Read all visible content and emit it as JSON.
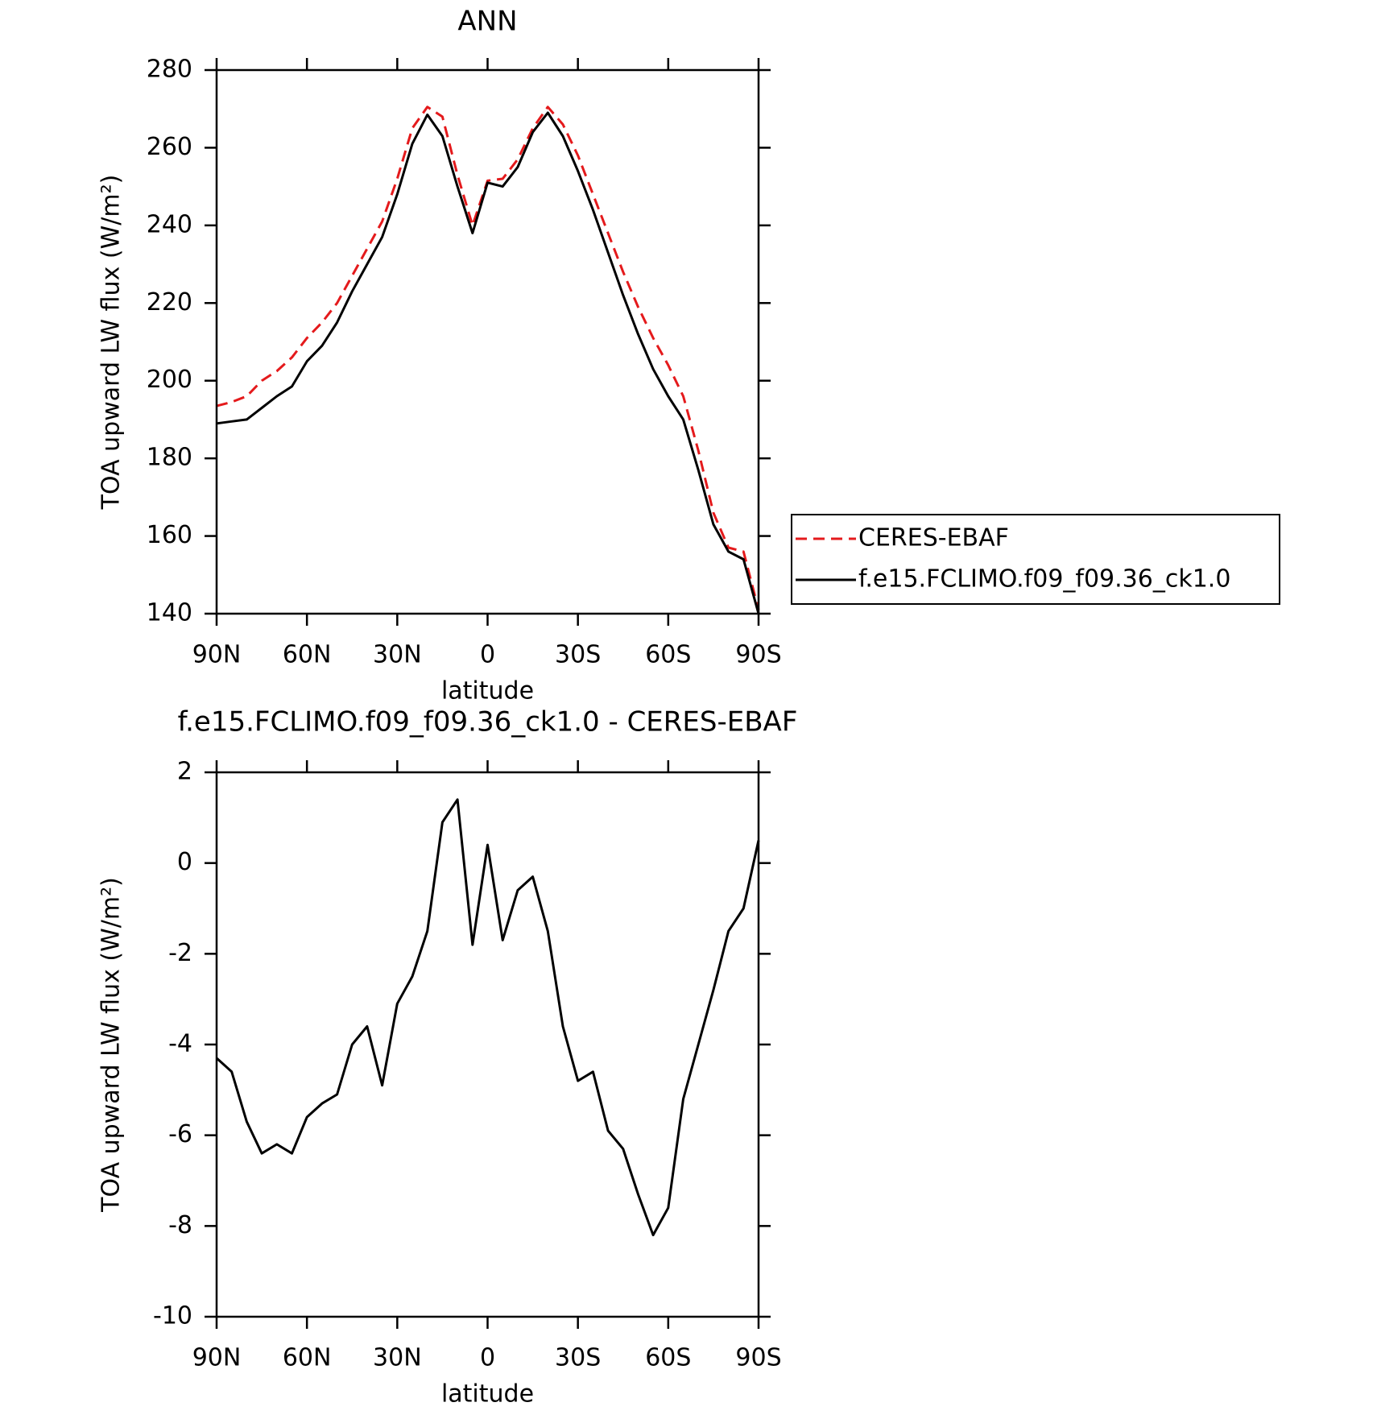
{
  "chart_data": [
    {
      "type": "line",
      "title": "ANN",
      "xlabel": "latitude",
      "ylabel": "TOA upward LW flux (W/m²)",
      "x": [
        90,
        85,
        80,
        75,
        70,
        65,
        60,
        55,
        50,
        45,
        40,
        35,
        30,
        25,
        20,
        15,
        10,
        5,
        0,
        -5,
        -10,
        -15,
        -20,
        -25,
        -30,
        -35,
        -40,
        -45,
        -50,
        -55,
        -60,
        -65,
        -70,
        -75,
        -80,
        -85,
        -90
      ],
      "xlim": [
        90,
        -90
      ],
      "xticks": [
        {
          "value": 90,
          "label": "90N"
        },
        {
          "value": 60,
          "label": "60N"
        },
        {
          "value": 30,
          "label": "30N"
        },
        0,
        {
          "value": -30,
          "label": "30S"
        },
        {
          "value": -60,
          "label": "60S"
        },
        {
          "value": -90,
          "label": "90S"
        }
      ],
      "ylim": [
        140,
        280
      ],
      "yticks": [
        140,
        160,
        180,
        200,
        220,
        240,
        260,
        280
      ],
      "legend": "right",
      "series": [
        {
          "name": "CERES-EBAF",
          "color": "#e41a1c",
          "dash": true,
          "values": [
            193.5,
            194.5,
            196,
            200,
            202.5,
            206,
            211,
            215,
            220,
            227,
            234,
            241,
            252,
            265,
            270.5,
            268,
            253,
            240,
            251.5,
            252,
            257,
            265,
            270.5,
            266,
            258,
            248,
            238,
            228,
            219,
            211,
            204,
            196,
            182,
            166,
            157,
            156,
            141
          ]
        },
        {
          "name": "f.e15.FCLIMO.f09_f09.36_ck1.0",
          "color": "#000000",
          "dash": false,
          "values": [
            189,
            189.5,
            190,
            193,
            196,
            198.5,
            205,
            209,
            215,
            223,
            230,
            237,
            248,
            261,
            268.5,
            263,
            250,
            238,
            251,
            250,
            255,
            264,
            269,
            263,
            254,
            244,
            233,
            222,
            212,
            203,
            196,
            190,
            177,
            163,
            156,
            154,
            140
          ]
        }
      ]
    },
    {
      "type": "line",
      "title": "f.e15.FCLIMO.f09_f09.36_ck1.0 - CERES-EBAF",
      "xlabel": "latitude",
      "ylabel": "TOA upward LW flux (W/m²)",
      "x": [
        90,
        85,
        80,
        75,
        70,
        65,
        60,
        55,
        50,
        45,
        40,
        35,
        30,
        25,
        20,
        15,
        10,
        5,
        0,
        -5,
        -10,
        -15,
        -20,
        -25,
        -30,
        -35,
        -40,
        -45,
        -50,
        -55,
        -60,
        -65,
        -70,
        -75,
        -80,
        -85,
        -90
      ],
      "xlim": [
        90,
        -90
      ],
      "xticks": [
        {
          "value": 90,
          "label": "90N"
        },
        {
          "value": 60,
          "label": "60N"
        },
        {
          "value": 30,
          "label": "30N"
        },
        0,
        {
          "value": -30,
          "label": "30S"
        },
        {
          "value": -60,
          "label": "60S"
        },
        {
          "value": -90,
          "label": "90S"
        }
      ],
      "ylim": [
        -10,
        2
      ],
      "yticks": [
        -10,
        -8,
        -6,
        -4,
        -2,
        0,
        2
      ],
      "series": [
        {
          "color": "#000000",
          "dash": false,
          "values": [
            -4.3,
            -4.6,
            -5.7,
            -6.4,
            -6.2,
            -6.4,
            -5.6,
            -5.3,
            -5.1,
            -4.0,
            -3.6,
            -4.9,
            -3.1,
            -2.5,
            -1.5,
            0.9,
            1.4,
            -1.8,
            0.4,
            -1.7,
            -0.6,
            -0.3,
            -1.5,
            -3.6,
            -4.8,
            -4.6,
            -5.9,
            -6.3,
            -7.3,
            -8.2,
            -7.6,
            -5.2,
            -4.0,
            -2.8,
            -1.5,
            -1.0,
            0.5
          ]
        }
      ]
    }
  ]
}
